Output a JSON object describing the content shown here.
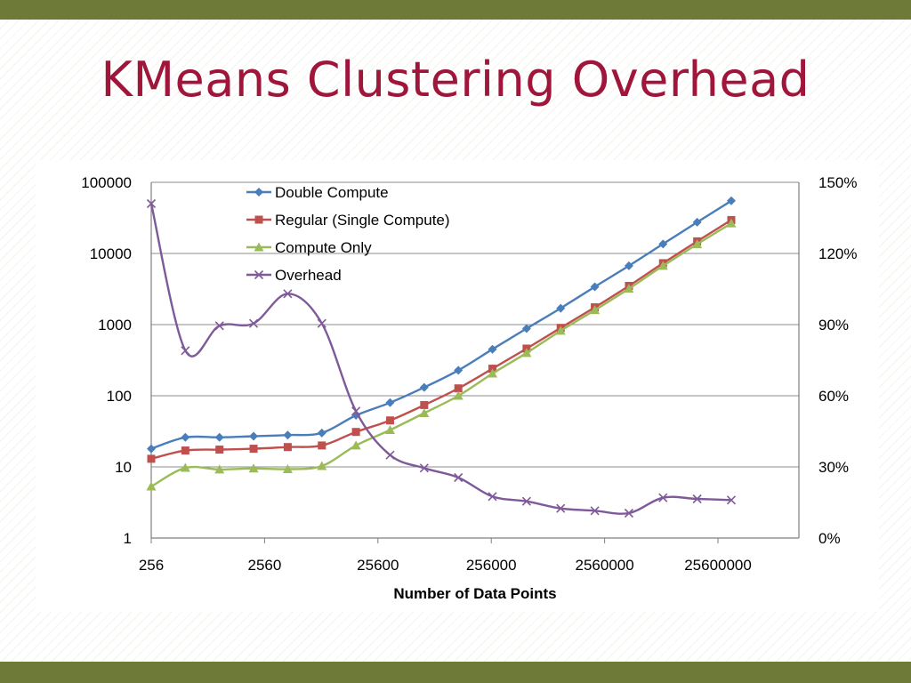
{
  "slide": {
    "title": "KMeans Clustering Overhead",
    "title_color": "#a0163a",
    "band_color": "#6e7a37"
  },
  "chart_data": {
    "type": "line",
    "xlabel": "Number of Data Points",
    "x_scale": "log",
    "x_ticks": [
      "256",
      "2560",
      "25600",
      "256000",
      "2560000",
      "25600000"
    ],
    "y_scale": "log",
    "y_ticks": [
      "1",
      "10",
      "100",
      "1000",
      "10000",
      "100000"
    ],
    "ylim": [
      1,
      100000
    ],
    "y2_ticks": [
      "0%",
      "30%",
      "60%",
      "90%",
      "120%",
      "150%"
    ],
    "y2lim": [
      0,
      1.5
    ],
    "grid": true,
    "legend_position": "top-left-inside",
    "x": [
      256,
      512,
      1024,
      2048,
      4096,
      8192,
      16384,
      32768,
      65536,
      131072,
      262144,
      524288,
      1048576,
      2097152,
      4194304,
      8388608,
      16777216,
      33554432
    ],
    "series": [
      {
        "name": "Double Compute",
        "axis": "left",
        "color": "#4a7ebb",
        "marker": "diamond",
        "values": [
          18,
          26,
          26,
          27,
          28,
          30,
          53,
          80,
          131,
          228,
          450,
          880,
          1700,
          3400,
          6700,
          13600,
          27500,
          55000
        ]
      },
      {
        "name": "Regular (Single Compute)",
        "axis": "left",
        "color": "#c0504d",
        "marker": "square",
        "values": [
          13,
          17,
          17.5,
          18,
          19,
          20,
          31,
          45,
          74,
          127,
          240,
          460,
          900,
          1750,
          3500,
          7300,
          14800,
          29500
        ]
      },
      {
        "name": "Compute Only",
        "axis": "left",
        "color": "#9bbb59",
        "marker": "triangle",
        "values": [
          5.3,
          9.7,
          9.2,
          9.5,
          9.3,
          10.3,
          20,
          33,
          57,
          100,
          205,
          400,
          820,
          1600,
          3200,
          6700,
          13500,
          26500
        ]
      },
      {
        "name": "Overhead",
        "axis": "right",
        "color": "#7f5a9a",
        "marker": "x",
        "values": [
          1.41,
          0.79,
          0.895,
          0.905,
          1.03,
          0.905,
          0.535,
          0.35,
          0.295,
          0.255,
          0.175,
          0.155,
          0.125,
          0.115,
          0.105,
          0.17,
          0.165,
          0.16
        ]
      }
    ]
  }
}
